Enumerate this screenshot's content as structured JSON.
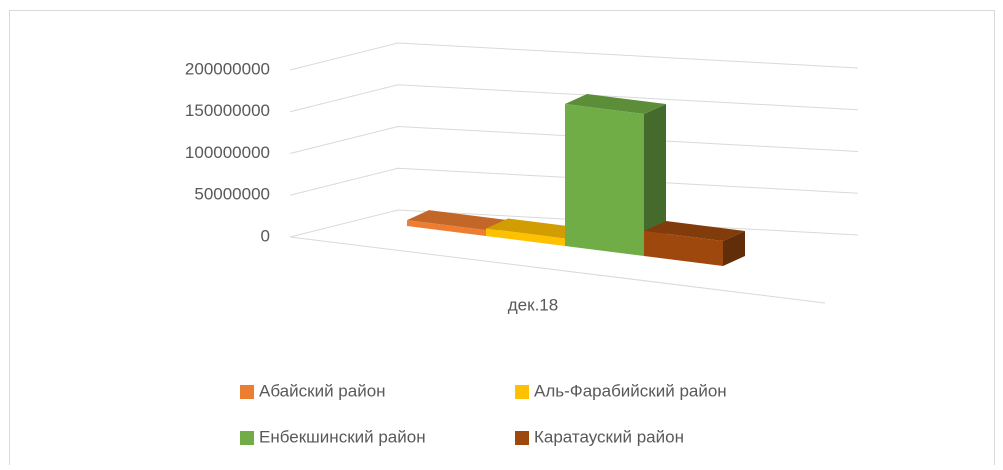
{
  "chart_data": {
    "type": "bar3d",
    "categories": [
      "дек.18"
    ],
    "series": [
      {
        "name": "Абайский район",
        "color": "#ed7d31",
        "values": [
          7000000
        ]
      },
      {
        "name": "Аль-Фарабийский район",
        "color": "#ffc000",
        "values": [
          9000000
        ]
      },
      {
        "name": "Енбекшинский район",
        "color": "#70ad47",
        "values": [
          170000000
        ]
      },
      {
        "name": "Каратауский район",
        "color": "#9e480e",
        "values": [
          30000000
        ]
      }
    ],
    "ylim": [
      0,
      200000000
    ],
    "yticks": [
      0,
      50000000,
      100000000,
      150000000,
      200000000
    ],
    "grid": true,
    "legend": "bottom"
  }
}
